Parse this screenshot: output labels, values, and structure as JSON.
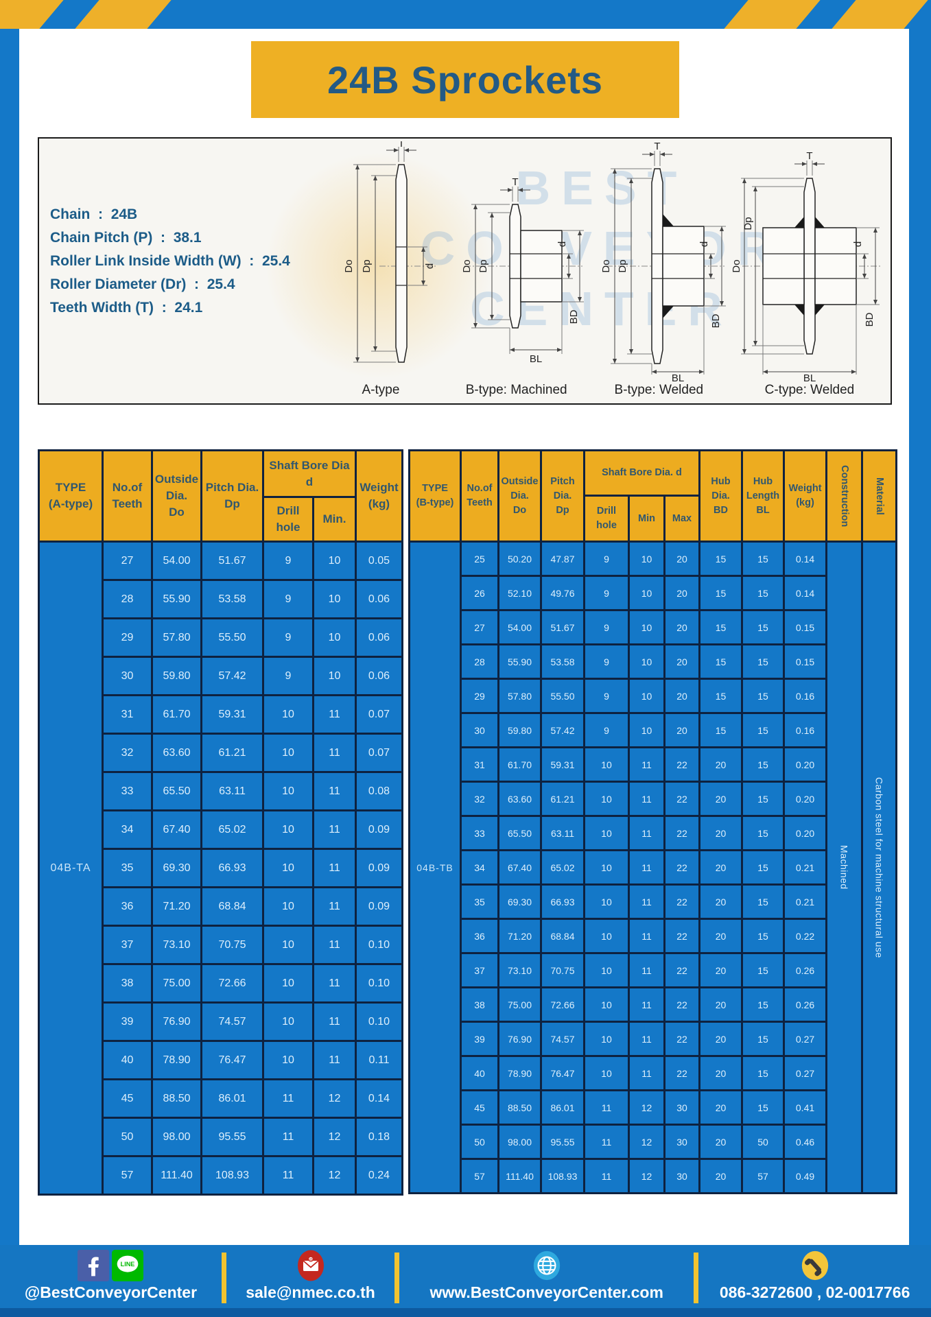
{
  "title": "24B Sprockets",
  "specs": [
    {
      "label": "Chain",
      "value": "24B"
    },
    {
      "label": "Chain Pitch (P)",
      "value": "38.1"
    },
    {
      "label": "Roller Link Inside Width (W)",
      "value": "25.4"
    },
    {
      "label": "Roller Diameter (Dr)",
      "value": "25.4"
    },
    {
      "label": "Teeth Width (T)",
      "value": "24.1"
    }
  ],
  "diagram": {
    "watermark_lines": [
      "BEST",
      "CONVEYOR",
      "CENTER"
    ],
    "captions": [
      "A-type",
      "B-type: Machined",
      "B-type: Welded",
      "C-type: Welded"
    ],
    "dims": {
      "t": "T",
      "do": "Do",
      "dp": "Dp",
      "d": "d",
      "bd": "BD",
      "bl": "BL"
    }
  },
  "table_a": {
    "type_label": "04B-TA",
    "headers": {
      "type": "TYPE\n(A-type)",
      "teeth": "No.of\nTeeth",
      "outside": "Outside\nDia.\nDo",
      "pitch": "Pitch Dia.\nDp",
      "shaft_bore": "Shaft Bore Dia d",
      "drill": "Drill hole",
      "min": "Min.",
      "weight": "Weight\n(kg)"
    },
    "rows": [
      [
        "27",
        "54.00",
        "51.67",
        "9",
        "10",
        "0.05"
      ],
      [
        "28",
        "55.90",
        "53.58",
        "9",
        "10",
        "0.06"
      ],
      [
        "29",
        "57.80",
        "55.50",
        "9",
        "10",
        "0.06"
      ],
      [
        "30",
        "59.80",
        "57.42",
        "9",
        "10",
        "0.06"
      ],
      [
        "31",
        "61.70",
        "59.31",
        "10",
        "11",
        "0.07"
      ],
      [
        "32",
        "63.60",
        "61.21",
        "10",
        "11",
        "0.07"
      ],
      [
        "33",
        "65.50",
        "63.11",
        "10",
        "11",
        "0.08"
      ],
      [
        "34",
        "67.40",
        "65.02",
        "10",
        "11",
        "0.09"
      ],
      [
        "35",
        "69.30",
        "66.93",
        "10",
        "11",
        "0.09"
      ],
      [
        "36",
        "71.20",
        "68.84",
        "10",
        "11",
        "0.09"
      ],
      [
        "37",
        "73.10",
        "70.75",
        "10",
        "11",
        "0.10"
      ],
      [
        "38",
        "75.00",
        "72.66",
        "10",
        "11",
        "0.10"
      ],
      [
        "39",
        "76.90",
        "74.57",
        "10",
        "11",
        "0.10"
      ],
      [
        "40",
        "78.90",
        "76.47",
        "10",
        "11",
        "0.11"
      ],
      [
        "45",
        "88.50",
        "86.01",
        "11",
        "12",
        "0.14"
      ],
      [
        "50",
        "98.00",
        "95.55",
        "11",
        "12",
        "0.18"
      ],
      [
        "57",
        "111.40",
        "108.93",
        "11",
        "12",
        "0.24"
      ]
    ]
  },
  "table_b": {
    "type_label": "04B-TB",
    "construction_value": "Machined",
    "material_value": "Carbon steel for machine structural use",
    "headers": {
      "type": "TYPE\n(B-type)",
      "teeth": "No.of\nTeeth",
      "outside": "Outside\nDia.\nDo",
      "pitch": "Pitch\nDia.\nDp",
      "shaft_bore": "Shaft Bore Dia. d",
      "drill": "Drill hole",
      "min": "Min",
      "max": "Max",
      "hub_dia": "Hub\nDia.\nBD",
      "hub_len": "Hub\nLength\nBL",
      "weight": "Weight\n(kg)",
      "construction": "Construction",
      "material": "Material"
    },
    "rows": [
      [
        "25",
        "50.20",
        "47.87",
        "9",
        "10",
        "20",
        "15",
        "15",
        "0.14"
      ],
      [
        "26",
        "52.10",
        "49.76",
        "9",
        "10",
        "20",
        "15",
        "15",
        "0.14"
      ],
      [
        "27",
        "54.00",
        "51.67",
        "9",
        "10",
        "20",
        "15",
        "15",
        "0.15"
      ],
      [
        "28",
        "55.90",
        "53.58",
        "9",
        "10",
        "20",
        "15",
        "15",
        "0.15"
      ],
      [
        "29",
        "57.80",
        "55.50",
        "9",
        "10",
        "20",
        "15",
        "15",
        "0.16"
      ],
      [
        "30",
        "59.80",
        "57.42",
        "9",
        "10",
        "20",
        "15",
        "15",
        "0.16"
      ],
      [
        "31",
        "61.70",
        "59.31",
        "10",
        "11",
        "22",
        "20",
        "15",
        "0.20"
      ],
      [
        "32",
        "63.60",
        "61.21",
        "10",
        "11",
        "22",
        "20",
        "15",
        "0.20"
      ],
      [
        "33",
        "65.50",
        "63.11",
        "10",
        "11",
        "22",
        "20",
        "15",
        "0.20"
      ],
      [
        "34",
        "67.40",
        "65.02",
        "10",
        "11",
        "22",
        "20",
        "15",
        "0.21"
      ],
      [
        "35",
        "69.30",
        "66.93",
        "10",
        "11",
        "22",
        "20",
        "15",
        "0.21"
      ],
      [
        "36",
        "71.20",
        "68.84",
        "10",
        "11",
        "22",
        "20",
        "15",
        "0.22"
      ],
      [
        "37",
        "73.10",
        "70.75",
        "10",
        "11",
        "22",
        "20",
        "15",
        "0.26"
      ],
      [
        "38",
        "75.00",
        "72.66",
        "10",
        "11",
        "22",
        "20",
        "15",
        "0.26"
      ],
      [
        "39",
        "76.90",
        "74.57",
        "10",
        "11",
        "22",
        "20",
        "15",
        "0.27"
      ],
      [
        "40",
        "78.90",
        "76.47",
        "10",
        "11",
        "22",
        "20",
        "15",
        "0.27"
      ],
      [
        "45",
        "88.50",
        "86.01",
        "11",
        "12",
        "30",
        "20",
        "15",
        "0.41"
      ],
      [
        "50",
        "98.00",
        "95.55",
        "11",
        "12",
        "30",
        "20",
        "50",
        "0.46"
      ],
      [
        "57",
        "111.40",
        "108.93",
        "11",
        "12",
        "30",
        "20",
        "57",
        "0.49"
      ]
    ]
  },
  "footer": {
    "items": [
      {
        "icon": "facebook-line-icons",
        "label": "@BestConveyorCenter"
      },
      {
        "icon": "email-icon",
        "label": "sale@nmec.co.th"
      },
      {
        "icon": "globe-icon",
        "label": "www.BestConveyorCenter.com"
      },
      {
        "icon": "phone-icon",
        "label": "086-3272600 , 02-0017766"
      }
    ]
  },
  "colors": {
    "blue": "#1478c8",
    "yellow": "#edac20",
    "title_text": "#235a85",
    "table_border": "#0e2240",
    "facebook_blue": "#4a5fa8",
    "line_green": "#00b900",
    "email_red": "#c4281f",
    "globe_blue": "#2ea9df",
    "phone_yellow": "#f3c53a"
  }
}
